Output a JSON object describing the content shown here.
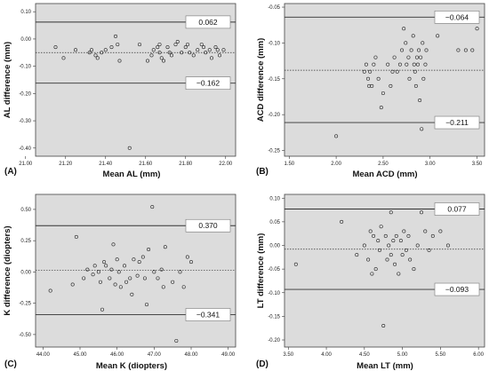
{
  "chart_data": [
    {
      "type": "scatter",
      "panel": "(A)",
      "xlabel": "Mean AL (mm)",
      "ylabel": "AL difference (mm)",
      "xlim": [
        21.05,
        22.05
      ],
      "ylim": [
        -0.43,
        0.13
      ],
      "xticks": [
        21.0,
        21.2,
        21.4,
        21.6,
        21.8,
        22.0
      ],
      "xtick_labels": [
        "21.00",
        "21.20",
        "21.40",
        "21.60",
        "21.80",
        "22.00"
      ],
      "yticks": [
        0.1,
        0.0,
        -0.1,
        -0.2,
        -0.3,
        -0.4
      ],
      "ytick_labels": [
        "0.10",
        "0.00",
        "-0.10",
        "-0.20",
        "-0.30",
        "-0.40"
      ],
      "upper_loa": 0.062,
      "upper_label": "0.062",
      "mean_diff": -0.05,
      "lower_loa": -0.162,
      "lower_label": "−0.162",
      "points": [
        [
          21.15,
          -0.03
        ],
        [
          21.19,
          -0.07
        ],
        [
          21.25,
          -0.04
        ],
        [
          21.32,
          -0.05
        ],
        [
          21.33,
          -0.04
        ],
        [
          21.35,
          -0.06
        ],
        [
          21.36,
          -0.07
        ],
        [
          21.38,
          -0.05
        ],
        [
          21.4,
          -0.04
        ],
        [
          21.43,
          -0.03
        ],
        [
          21.45,
          0.01
        ],
        [
          21.46,
          -0.02
        ],
        [
          21.47,
          -0.08
        ],
        [
          21.52,
          -0.4
        ],
        [
          21.57,
          -0.02
        ],
        [
          21.61,
          -0.08
        ],
        [
          21.63,
          -0.06
        ],
        [
          21.64,
          -0.04
        ],
        [
          21.66,
          -0.03
        ],
        [
          21.67,
          -0.05
        ],
        [
          21.67,
          -0.02
        ],
        [
          21.68,
          -0.07
        ],
        [
          21.69,
          -0.08
        ],
        [
          21.71,
          -0.03
        ],
        [
          21.72,
          -0.05
        ],
        [
          21.73,
          -0.06
        ],
        [
          21.75,
          -0.02
        ],
        [
          21.76,
          -0.01
        ],
        [
          21.78,
          -0.05
        ],
        [
          21.8,
          -0.03
        ],
        [
          21.81,
          -0.02
        ],
        [
          21.82,
          -0.05
        ],
        [
          21.84,
          -0.06
        ],
        [
          21.86,
          -0.04
        ],
        [
          21.88,
          -0.02
        ],
        [
          21.89,
          -0.03
        ],
        [
          21.9,
          -0.05
        ],
        [
          21.92,
          -0.04
        ],
        [
          21.93,
          -0.07
        ],
        [
          21.95,
          -0.03
        ],
        [
          21.96,
          -0.04
        ],
        [
          21.97,
          -0.06
        ],
        [
          21.99,
          -0.04
        ]
      ]
    },
    {
      "type": "scatter",
      "panel": "(B)",
      "xlabel": "Mean ACD (mm)",
      "ylabel": "ACD difference (mm)",
      "xlim": [
        1.45,
        3.58
      ],
      "ylim": [
        -0.258,
        -0.045
      ],
      "xticks": [
        1.5,
        2.0,
        2.5,
        3.0,
        3.5
      ],
      "xtick_labels": [
        "1.50",
        "2.00",
        "2.50",
        "3.00",
        "3.50"
      ],
      "yticks": [
        -0.05,
        -0.1,
        -0.15,
        -0.2,
        -0.25
      ],
      "ytick_labels": [
        "-0.05",
        "-0.10",
        "-0.15",
        "-0.20",
        "-0.25"
      ],
      "upper_loa": -0.064,
      "upper_label": "−0.064",
      "mean_diff": -0.138,
      "lower_loa": -0.211,
      "lower_label": "−0.211",
      "points": [
        [
          2.0,
          -0.23
        ],
        [
          2.3,
          -0.14
        ],
        [
          2.32,
          -0.13
        ],
        [
          2.34,
          -0.15
        ],
        [
          2.35,
          -0.16
        ],
        [
          2.36,
          -0.14
        ],
        [
          2.38,
          -0.16
        ],
        [
          2.4,
          -0.13
        ],
        [
          2.42,
          -0.12
        ],
        [
          2.45,
          -0.15
        ],
        [
          2.48,
          -0.19
        ],
        [
          2.5,
          -0.17
        ],
        [
          2.55,
          -0.13
        ],
        [
          2.58,
          -0.16
        ],
        [
          2.6,
          -0.14
        ],
        [
          2.62,
          -0.12
        ],
        [
          2.65,
          -0.14
        ],
        [
          2.68,
          -0.13
        ],
        [
          2.7,
          -0.11
        ],
        [
          2.72,
          -0.08
        ],
        [
          2.74,
          -0.1
        ],
        [
          2.75,
          -0.13
        ],
        [
          2.77,
          -0.12
        ],
        [
          2.78,
          -0.15
        ],
        [
          2.8,
          -0.11
        ],
        [
          2.82,
          -0.09
        ],
        [
          2.83,
          -0.13
        ],
        [
          2.84,
          -0.14
        ],
        [
          2.85,
          -0.16
        ],
        [
          2.86,
          -0.12
        ],
        [
          2.87,
          -0.13
        ],
        [
          2.88,
          -0.11
        ],
        [
          2.89,
          -0.18
        ],
        [
          2.9,
          -0.12
        ],
        [
          2.91,
          -0.22
        ],
        [
          2.92,
          -0.1
        ],
        [
          2.93,
          -0.15
        ],
        [
          2.95,
          -0.13
        ],
        [
          2.96,
          -0.11
        ],
        [
          3.08,
          -0.09
        ],
        [
          3.3,
          -0.11
        ],
        [
          3.38,
          -0.11
        ],
        [
          3.45,
          -0.11
        ],
        [
          3.5,
          -0.08
        ]
      ]
    },
    {
      "type": "scatter",
      "panel": "(C)",
      "xlabel": "Mean K (diopters)",
      "ylabel": "K difference (diopters)",
      "xlim": [
        43.8,
        49.2
      ],
      "ylim": [
        -0.6,
        0.62
      ],
      "xticks": [
        44.0,
        45.0,
        46.0,
        47.0,
        48.0,
        49.0
      ],
      "xtick_labels": [
        "44.00",
        "45.00",
        "46.00",
        "47.00",
        "48.00",
        "49.00"
      ],
      "yticks": [
        0.5,
        0.25,
        0.0,
        -0.25,
        -0.5
      ],
      "ytick_labels": [
        "0.50",
        "0.25",
        "0.00",
        "-0.25",
        "-0.50"
      ],
      "upper_loa": 0.37,
      "upper_label": "0.370",
      "mean_diff": 0.015,
      "lower_loa": -0.341,
      "lower_label": "−0.341",
      "points": [
        [
          44.2,
          -0.15
        ],
        [
          44.8,
          -0.1
        ],
        [
          44.9,
          0.28
        ],
        [
          45.1,
          -0.05
        ],
        [
          45.2,
          0.02
        ],
        [
          45.35,
          -0.02
        ],
        [
          45.4,
          0.05
        ],
        [
          45.5,
          0.0
        ],
        [
          45.55,
          -0.08
        ],
        [
          45.6,
          -0.3
        ],
        [
          45.65,
          0.08
        ],
        [
          45.7,
          0.05
        ],
        [
          45.8,
          -0.05
        ],
        [
          45.85,
          0.02
        ],
        [
          45.9,
          0.22
        ],
        [
          45.95,
          -0.1
        ],
        [
          46.0,
          0.1
        ],
        [
          46.05,
          0.0
        ],
        [
          46.1,
          -0.12
        ],
        [
          46.2,
          0.05
        ],
        [
          46.25,
          -0.08
        ],
        [
          46.35,
          -0.05
        ],
        [
          46.45,
          0.1
        ],
        [
          46.55,
          -0.03
        ],
        [
          46.6,
          0.08
        ],
        [
          46.7,
          0.12
        ],
        [
          46.75,
          -0.05
        ],
        [
          46.8,
          -0.26
        ],
        [
          46.85,
          0.18
        ],
        [
          46.95,
          0.52
        ],
        [
          47.0,
          0.0
        ],
        [
          47.1,
          -0.05
        ],
        [
          47.2,
          0.02
        ],
        [
          47.25,
          -0.12
        ],
        [
          47.3,
          0.2
        ],
        [
          47.5,
          -0.08
        ],
        [
          47.7,
          0.0
        ],
        [
          47.8,
          -0.12
        ],
        [
          47.9,
          0.12
        ],
        [
          48.0,
          0.08
        ],
        [
          47.6,
          -0.55
        ],
        [
          46.4,
          -0.18
        ]
      ]
    },
    {
      "type": "scatter",
      "panel": "(D)",
      "xlabel": "Mean LT (mm)",
      "ylabel": "LT difference (mm)",
      "xlim": [
        3.45,
        6.08
      ],
      "ylim": [
        -0.215,
        0.108
      ],
      "xticks": [
        3.5,
        4.0,
        4.5,
        5.0,
        5.5,
        6.0
      ],
      "xtick_labels": [
        "3.50",
        "4.00",
        "4.50",
        "5.00",
        "5.50",
        "6.00"
      ],
      "yticks": [
        0.1,
        0.05,
        0.0,
        -0.05,
        -0.1,
        -0.15,
        -0.2
      ],
      "ytick_labels": [
        "0.10",
        "0.05",
        "0.00",
        "-0.05",
        "-0.10",
        "-0.15",
        "-0.20"
      ],
      "upper_loa": 0.077,
      "upper_label": "0.077",
      "mean_diff": -0.008,
      "lower_loa": -0.093,
      "lower_label": "−0.093",
      "points": [
        [
          3.6,
          -0.04
        ],
        [
          4.2,
          0.05
        ],
        [
          4.4,
          -0.02
        ],
        [
          4.5,
          0.0
        ],
        [
          4.55,
          -0.03
        ],
        [
          4.58,
          0.03
        ],
        [
          4.6,
          -0.06
        ],
        [
          4.62,
          0.02
        ],
        [
          4.65,
          -0.05
        ],
        [
          4.68,
          0.01
        ],
        [
          4.7,
          -0.01
        ],
        [
          4.72,
          0.04
        ],
        [
          4.75,
          -0.17
        ],
        [
          4.78,
          0.02
        ],
        [
          4.8,
          -0.03
        ],
        [
          4.82,
          0.0
        ],
        [
          4.85,
          -0.02
        ],
        [
          4.88,
          0.01
        ],
        [
          4.9,
          -0.04
        ],
        [
          4.92,
          0.02
        ],
        [
          4.95,
          -0.06
        ],
        [
          4.98,
          0.01
        ],
        [
          5.0,
          -0.02
        ],
        [
          5.02,
          0.03
        ],
        [
          5.05,
          -0.01
        ],
        [
          5.08,
          0.02
        ],
        [
          5.1,
          -0.03
        ],
        [
          5.15,
          -0.05
        ],
        [
          5.2,
          0.0
        ],
        [
          5.25,
          0.07
        ],
        [
          5.3,
          0.03
        ],
        [
          5.35,
          -0.01
        ],
        [
          5.4,
          0.02
        ],
        [
          5.5,
          0.03
        ],
        [
          5.6,
          0.0
        ],
        [
          4.85,
          0.07
        ]
      ]
    }
  ]
}
